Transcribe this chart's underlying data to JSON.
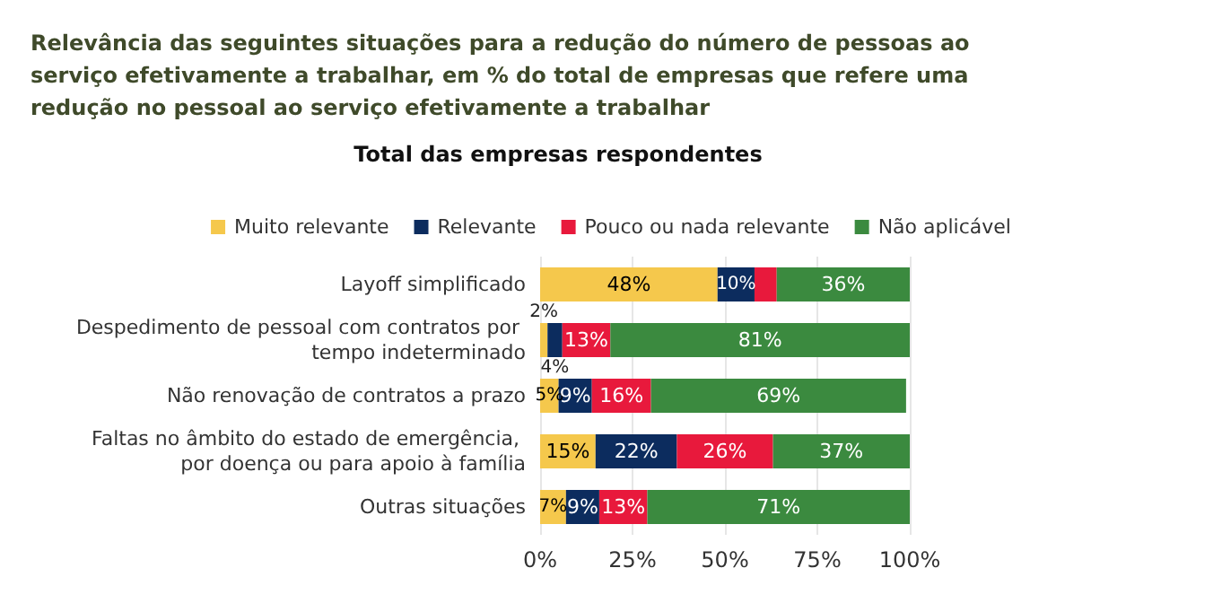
{
  "chart_data": {
    "type": "bar",
    "orientation": "horizontal",
    "stacked": true,
    "title": "Relevância das seguintes situações para a redução do número de pessoas ao serviço efetivamente a trabalhar, em % do total de empresas que refere uma redução no pessoal ao serviço efetivamente a trabalhar",
    "subtitle": "Total das empresas respondentes",
    "categories": [
      "Layoff simplificado",
      "Despedimento de pessoal com contratos por tempo indeterminado",
      "Não renovação de contratos a prazo",
      "Faltas no âmbito do estado de emergência, por doença ou para apoio à família",
      "Outras situações"
    ],
    "series": [
      {
        "name": "Muito relevante",
        "color": "#f5c84c",
        "values": [
          48,
          2,
          5,
          15,
          7
        ],
        "value_labels": [
          "48%",
          "2%",
          "5%",
          "15%",
          "7%"
        ]
      },
      {
        "name": "Relevante",
        "color": "#0c2c5e",
        "values": [
          10,
          4,
          9,
          22,
          9
        ],
        "value_labels": [
          "10%",
          "4%",
          "9%",
          "22%",
          "9%"
        ]
      },
      {
        "name": "Pouco ou nada relevante",
        "color": "#e8193c",
        "values": [
          6,
          13,
          16,
          26,
          13
        ],
        "value_labels": [
          null,
          "13%",
          "16%",
          "26%",
          "13%"
        ]
      },
      {
        "name": "Não aplicável",
        "color": "#3b8a3f",
        "values": [
          36,
          81,
          69,
          37,
          71
        ],
        "value_labels": [
          "36%",
          "81%",
          "69%",
          "37%",
          "71%"
        ]
      }
    ],
    "xlim": [
      0,
      100
    ],
    "xticks": [
      {
        "value": 0,
        "label": "0%"
      },
      {
        "value": 25,
        "label": "25%"
      },
      {
        "value": 50,
        "label": "50%"
      },
      {
        "value": 75,
        "label": "75%"
      },
      {
        "value": 100,
        "label": "100%"
      }
    ],
    "grid": "x",
    "legend": "top"
  }
}
